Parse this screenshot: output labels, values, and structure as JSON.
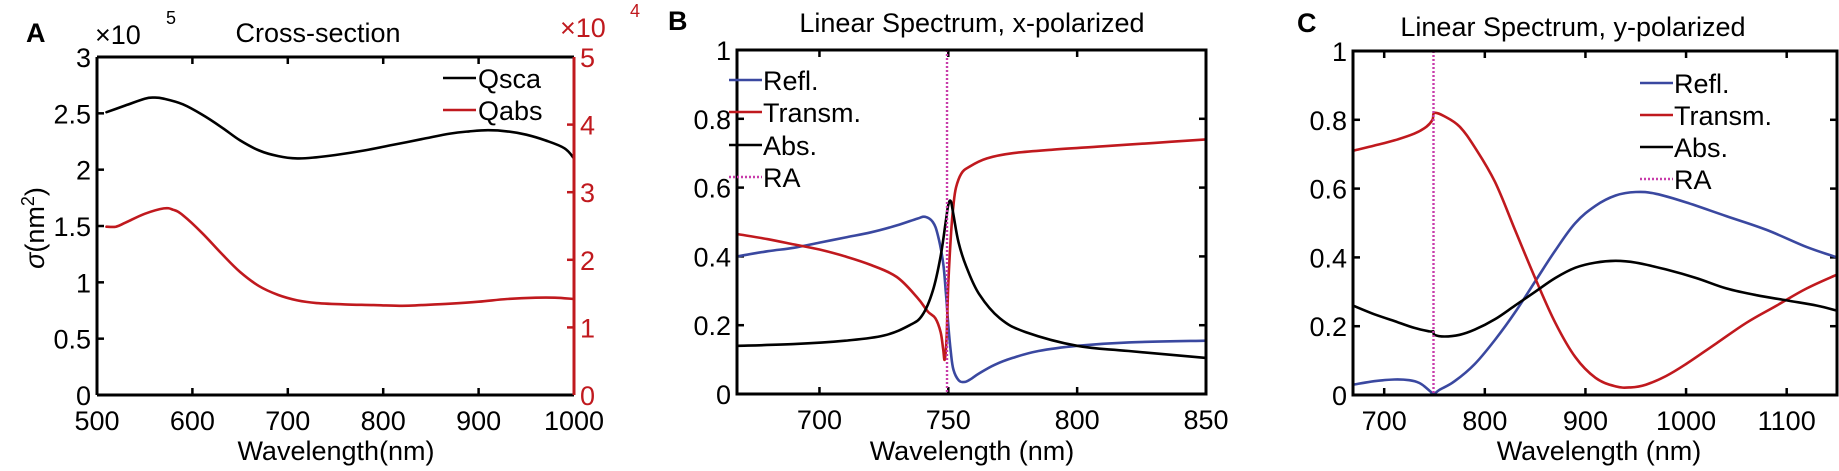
{
  "colors": {
    "black": "#000000",
    "red": "#c0191e",
    "blue": "#3a48a0",
    "magenta": "#c83caa"
  },
  "chart_data": [
    {
      "id": "A",
      "type": "line",
      "panel_letter": "A",
      "title": "Cross-section",
      "xlabel": "Wavelength(nm)",
      "ylabel": "σ(nm²)",
      "ylabel_parts": {
        "sigma": "σ",
        "prefix": "(nm",
        "sup": "2",
        "suffix": ")"
      },
      "xlim": [
        500,
        1000
      ],
      "ylim": [
        0,
        3
      ],
      "y2lim": [
        0,
        5
      ],
      "y_multiplier": {
        "base": "×10",
        "exp": "5"
      },
      "y2_multiplier": {
        "base": "×10",
        "exp": "4"
      },
      "xticks": [
        500,
        600,
        700,
        800,
        900,
        1000
      ],
      "xtick_labels": [
        "500",
        "600",
        "700",
        "800",
        "900",
        "1000"
      ],
      "yticks": [
        0,
        0.5,
        1,
        1.5,
        2,
        2.5,
        3
      ],
      "ytick_labels": [
        "0",
        "0.5",
        "1",
        "1.5",
        "2",
        "2.5",
        "3"
      ],
      "y2ticks": [
        0,
        1,
        2,
        3,
        4,
        5
      ],
      "y2tick_labels": [
        "0",
        "1",
        "2",
        "3",
        "4",
        "5"
      ],
      "legend_position": "top-right",
      "grid": false,
      "series": [
        {
          "name": "Qsca",
          "axis": "left",
          "color": "#000000",
          "x": [
            510,
            530,
            550,
            560,
            570,
            590,
            610,
            630,
            650,
            670,
            690,
            710,
            730,
            750,
            780,
            810,
            840,
            870,
            890,
            910,
            930,
            950,
            970,
            990,
            1000
          ],
          "y": [
            2.51,
            2.57,
            2.63,
            2.64,
            2.63,
            2.58,
            2.49,
            2.38,
            2.26,
            2.17,
            2.12,
            2.1,
            2.11,
            2.13,
            2.17,
            2.22,
            2.27,
            2.32,
            2.34,
            2.35,
            2.34,
            2.31,
            2.26,
            2.19,
            2.1
          ]
        },
        {
          "name": "Qabs",
          "axis": "right",
          "color": "#c0191e",
          "x": [
            510,
            520,
            530,
            550,
            570,
            580,
            590,
            610,
            630,
            650,
            670,
            690,
            710,
            730,
            760,
            790,
            820,
            840,
            870,
            900,
            930,
            960,
            980,
            1000
          ],
          "y": [
            2.49,
            2.49,
            2.55,
            2.68,
            2.76,
            2.74,
            2.66,
            2.4,
            2.1,
            1.82,
            1.61,
            1.48,
            1.4,
            1.36,
            1.34,
            1.33,
            1.32,
            1.33,
            1.35,
            1.38,
            1.42,
            1.44,
            1.44,
            1.42
          ]
        }
      ]
    },
    {
      "id": "B",
      "type": "line",
      "panel_letter": "B",
      "title": "Linear Spectrum, x-polarized",
      "xlabel": "Wavelength (nm)",
      "ylabel": "",
      "xlim": [
        668,
        850
      ],
      "ylim": [
        0,
        1
      ],
      "xticks": [
        700,
        750,
        800,
        850
      ],
      "xtick_labels": [
        "700",
        "750",
        "800",
        "850"
      ],
      "yticks": [
        0,
        0.2,
        0.4,
        0.6,
        0.8,
        1
      ],
      "ytick_labels": [
        "0",
        "0.2",
        "0.4",
        "0.6",
        "0.8",
        "1"
      ],
      "legend_position": "top-left",
      "grid": false,
      "series": [
        {
          "name": "Refl.",
          "color": "#3a48a0",
          "dash": false,
          "x": [
            668,
            680,
            690,
            700,
            710,
            720,
            730,
            738,
            741,
            744,
            746,
            748,
            749,
            750,
            751,
            752,
            754,
            756,
            758,
            762,
            768,
            775,
            785,
            800,
            820,
            850
          ],
          "y": [
            0.4,
            0.415,
            0.425,
            0.44,
            0.455,
            0.47,
            0.49,
            0.51,
            0.515,
            0.5,
            0.46,
            0.38,
            0.3,
            0.2,
            0.12,
            0.07,
            0.04,
            0.035,
            0.04,
            0.06,
            0.085,
            0.105,
            0.125,
            0.14,
            0.15,
            0.155
          ]
        },
        {
          "name": "Transm.",
          "color": "#c0191e",
          "dash": false,
          "x": [
            668,
            680,
            690,
            700,
            710,
            720,
            730,
            738,
            742,
            745,
            747,
            748,
            748.6,
            749.3,
            750,
            751,
            752,
            753,
            755,
            758,
            765,
            775,
            790,
            810,
            830,
            850
          ],
          "y": [
            0.465,
            0.45,
            0.435,
            0.42,
            0.4,
            0.375,
            0.34,
            0.28,
            0.24,
            0.22,
            0.18,
            0.13,
            0.1,
            0.16,
            0.32,
            0.46,
            0.55,
            0.6,
            0.64,
            0.66,
            0.685,
            0.7,
            0.71,
            0.72,
            0.73,
            0.74
          ]
        },
        {
          "name": "Abs.",
          "color": "#000000",
          "dash": false,
          "x": [
            668,
            690,
            710,
            725,
            735,
            740,
            744,
            747,
            749,
            750,
            751,
            752,
            754,
            757,
            762,
            770,
            780,
            800,
            820,
            850
          ],
          "y": [
            0.14,
            0.145,
            0.155,
            0.17,
            0.2,
            0.23,
            0.3,
            0.4,
            0.5,
            0.55,
            0.56,
            0.52,
            0.44,
            0.37,
            0.29,
            0.22,
            0.18,
            0.14,
            0.125,
            0.105
          ]
        }
      ],
      "vlines": [
        {
          "name": "RA",
          "x": 749.5,
          "color": "#c83caa",
          "style": "dotted"
        }
      ]
    },
    {
      "id": "C",
      "type": "line",
      "panel_letter": "C",
      "title": "Linear Spectrum, y-polarized",
      "xlabel": "Wavelength (nm)",
      "ylabel": "",
      "xlim": [
        669,
        1150
      ],
      "ylim": [
        0,
        1
      ],
      "xticks": [
        700,
        800,
        900,
        1000,
        1100
      ],
      "xtick_labels": [
        "700",
        "800",
        "900",
        "1000",
        "1100"
      ],
      "yticks": [
        0,
        0.2,
        0.4,
        0.6,
        0.8,
        1
      ],
      "ytick_labels": [
        "0",
        "0.2",
        "0.4",
        "0.6",
        "0.8",
        "1"
      ],
      "legend_position": "top-right",
      "grid": false,
      "series": [
        {
          "name": "Refl.",
          "color": "#3a48a0",
          "dash": false,
          "x": [
            669,
            690,
            710,
            725,
            735,
            742,
            746,
            749,
            755,
            770,
            790,
            810,
            830,
            850,
            870,
            890,
            910,
            930,
            950,
            970,
            1000,
            1040,
            1080,
            1120,
            1150
          ],
          "y": [
            0.03,
            0.04,
            0.045,
            0.043,
            0.035,
            0.02,
            0.01,
            0.002,
            0.015,
            0.04,
            0.09,
            0.16,
            0.24,
            0.33,
            0.42,
            0.5,
            0.55,
            0.58,
            0.59,
            0.585,
            0.56,
            0.52,
            0.48,
            0.43,
            0.4
          ]
        },
        {
          "name": "Transm.",
          "color": "#c0191e",
          "dash": false,
          "x": [
            669,
            690,
            710,
            730,
            742,
            748,
            750,
            760,
            775,
            790,
            810,
            830,
            850,
            870,
            890,
            910,
            930,
            945,
            960,
            980,
            1000,
            1030,
            1060,
            1090,
            1120,
            1150
          ],
          "y": [
            0.71,
            0.725,
            0.74,
            0.76,
            0.78,
            0.8,
            0.82,
            0.81,
            0.78,
            0.72,
            0.62,
            0.48,
            0.34,
            0.21,
            0.11,
            0.05,
            0.025,
            0.022,
            0.03,
            0.055,
            0.09,
            0.15,
            0.21,
            0.26,
            0.31,
            0.35
          ]
        },
        {
          "name": "Abs.",
          "color": "#000000",
          "dash": false,
          "x": [
            669,
            690,
            710,
            730,
            745,
            749,
            750,
            760,
            775,
            790,
            810,
            830,
            850,
            870,
            890,
            910,
            930,
            950,
            980,
            1010,
            1040,
            1070,
            1100,
            1130,
            1150
          ],
          "y": [
            0.26,
            0.235,
            0.215,
            0.195,
            0.185,
            0.185,
            0.175,
            0.17,
            0.175,
            0.19,
            0.22,
            0.26,
            0.3,
            0.34,
            0.37,
            0.385,
            0.39,
            0.385,
            0.365,
            0.34,
            0.31,
            0.29,
            0.275,
            0.26,
            0.245
          ]
        }
      ],
      "vlines": [
        {
          "name": "RA",
          "x": 749,
          "color": "#c83caa",
          "style": "dotted"
        }
      ]
    }
  ]
}
